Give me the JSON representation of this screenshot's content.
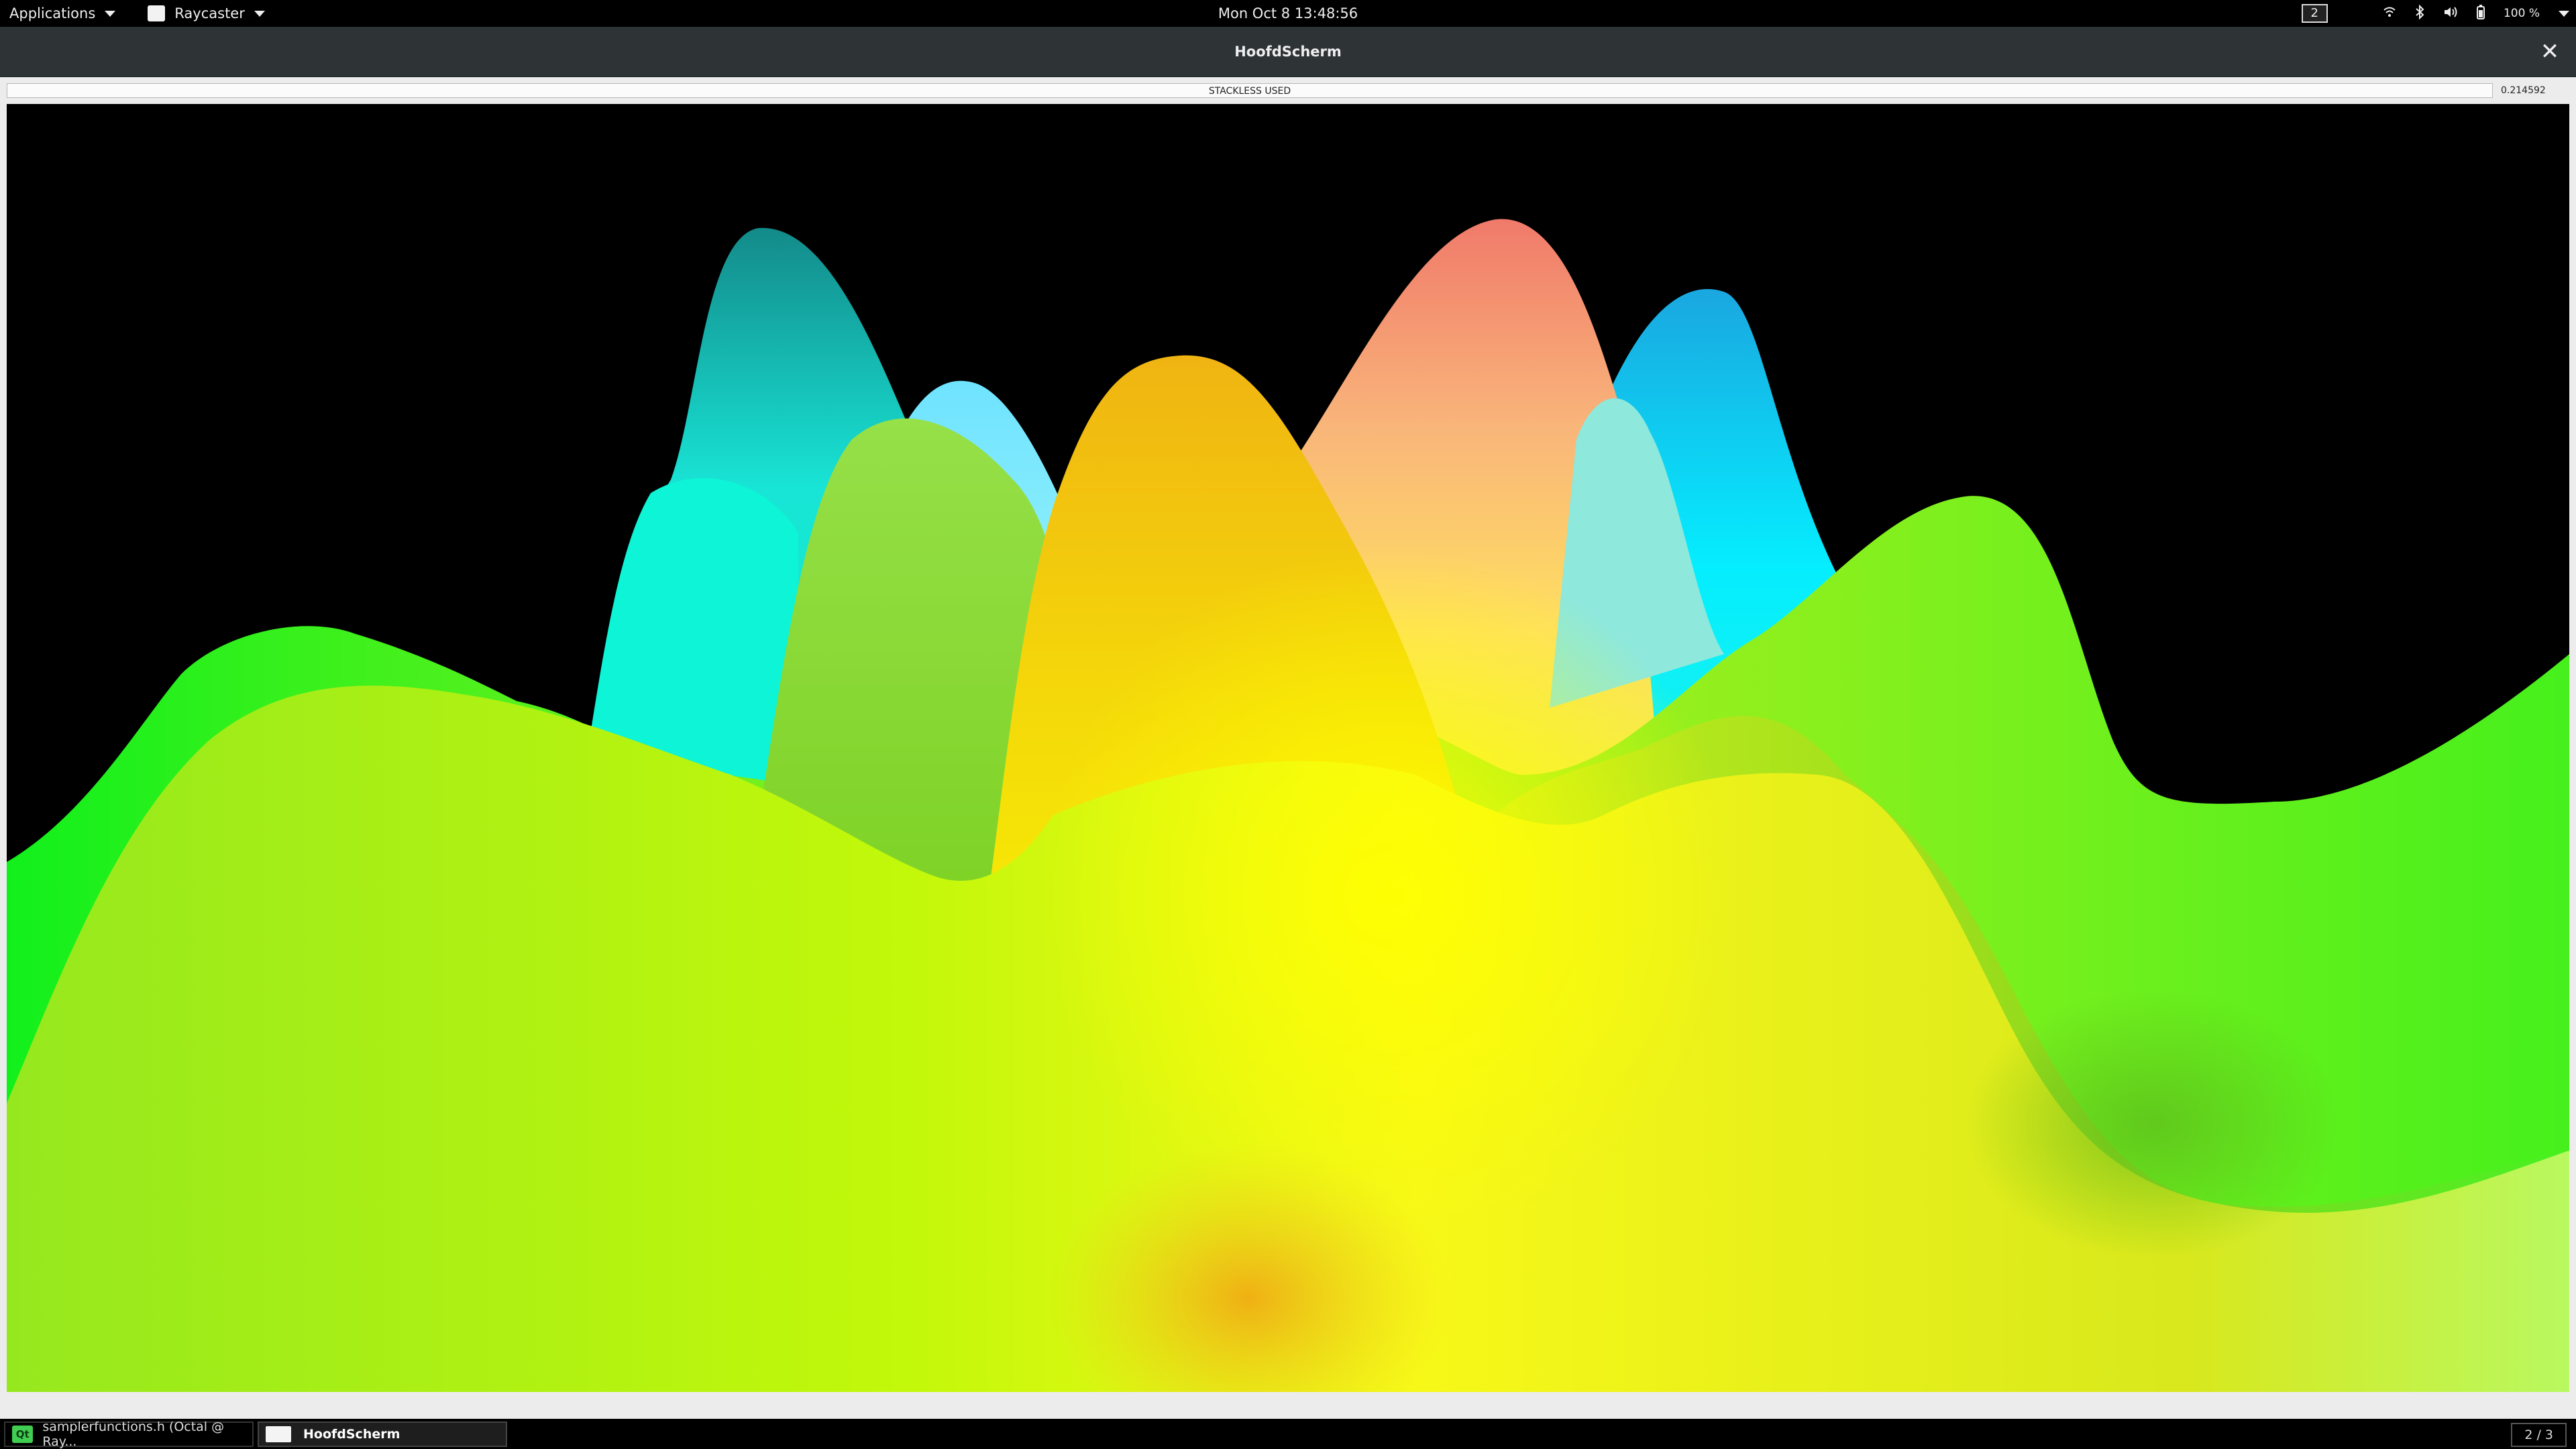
{
  "top_panel": {
    "applications_label": "Applications",
    "app_menu_label": "Raycaster",
    "clock": "Mon Oct 8  13:48:56",
    "workspace_number": "2",
    "battery_label": "100 %"
  },
  "window": {
    "title": "HoofdScherm",
    "status_text": "STACKLESS USED",
    "frame_time": "0.214592"
  },
  "taskbar": {
    "tasks": [
      {
        "label": "samplerfunctions.h (Octal @ Ray...",
        "icon": "qt-creator-icon",
        "icon_text": "Qt"
      },
      {
        "label": "HoofdScherm",
        "icon": "window-icon"
      }
    ],
    "workspace_indicator": "2 / 3"
  }
}
